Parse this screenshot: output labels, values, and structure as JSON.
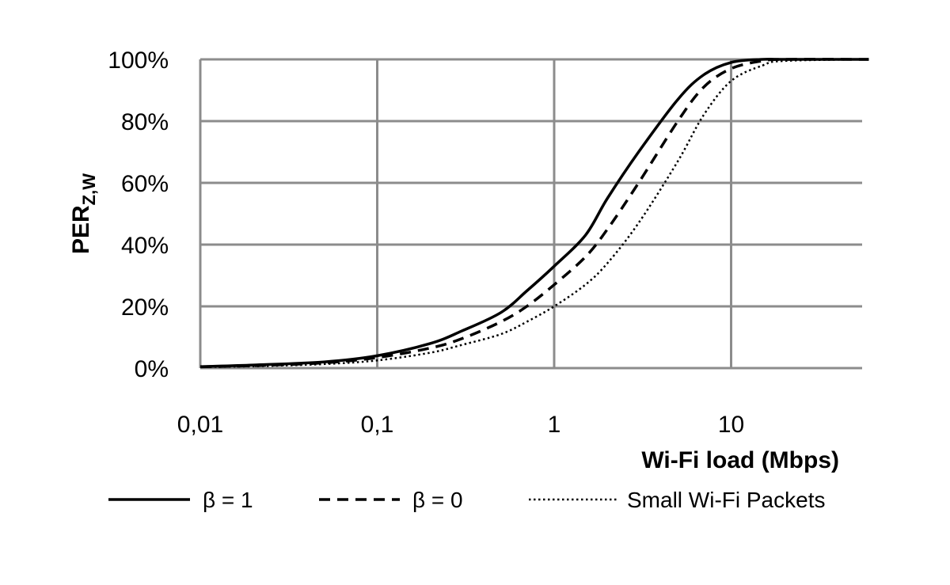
{
  "chart_data": {
    "type": "line",
    "xlabel": "Wi-Fi load (Mbps)",
    "ylabel": {
      "main": "PER",
      "subscript": "Z,W"
    },
    "x_scale": "log",
    "xlim": [
      0.01,
      60
    ],
    "ylim": [
      0,
      100
    ],
    "x_ticks": [
      {
        "value": 0.01,
        "label": "0,01"
      },
      {
        "value": 0.1,
        "label": "0,1"
      },
      {
        "value": 1,
        "label": "1"
      },
      {
        "value": 10,
        "label": "10"
      }
    ],
    "y_ticks": [
      {
        "value": 0,
        "label": "0%"
      },
      {
        "value": 20,
        "label": "20%"
      },
      {
        "value": 40,
        "label": "40%"
      },
      {
        "value": 60,
        "label": "60%"
      },
      {
        "value": 80,
        "label": "80%"
      },
      {
        "value": 100,
        "label": "100%"
      }
    ],
    "grid": true,
    "legend_position": "bottom",
    "series": [
      {
        "name": "β = 1",
        "style": "solid",
        "x": [
          0.01,
          0.02,
          0.05,
          0.1,
          0.2,
          0.3,
          0.5,
          0.7,
          1.0,
          1.5,
          2.0,
          3.0,
          5.0,
          7.0,
          10.0,
          15.0,
          20.0,
          60.0
        ],
        "y": [
          0.5,
          1.0,
          2.0,
          4.0,
          8.0,
          12.0,
          18.0,
          25.0,
          33.0,
          43.0,
          55.0,
          70.0,
          87.0,
          95.0,
          99.0,
          100.0,
          100.0,
          100.0
        ]
      },
      {
        "name": "β = 0",
        "style": "dashed",
        "x": [
          0.01,
          0.02,
          0.05,
          0.1,
          0.2,
          0.3,
          0.5,
          0.7,
          1.0,
          1.5,
          2.0,
          3.0,
          5.0,
          7.0,
          10.0,
          15.0,
          20.0,
          60.0
        ],
        "y": [
          0.4,
          0.8,
          1.7,
          3.4,
          6.5,
          9.5,
          15.0,
          20.0,
          27.0,
          36.0,
          45.0,
          60.0,
          80.0,
          91.0,
          97.0,
          99.5,
          100.0,
          100.0
        ]
      },
      {
        "name": "Small Wi-Fi Packets",
        "style": "dotted",
        "x": [
          0.01,
          0.02,
          0.05,
          0.1,
          0.2,
          0.3,
          0.5,
          0.7,
          1.0,
          1.5,
          2.0,
          3.0,
          5.0,
          7.0,
          10.0,
          15.0,
          20.0,
          60.0
        ],
        "y": [
          0.3,
          0.6,
          1.3,
          2.5,
          5.0,
          7.5,
          11.0,
          15.0,
          20.0,
          27.0,
          34.0,
          47.0,
          67.0,
          82.0,
          93.0,
          98.0,
          99.5,
          100.0
        ]
      }
    ]
  }
}
